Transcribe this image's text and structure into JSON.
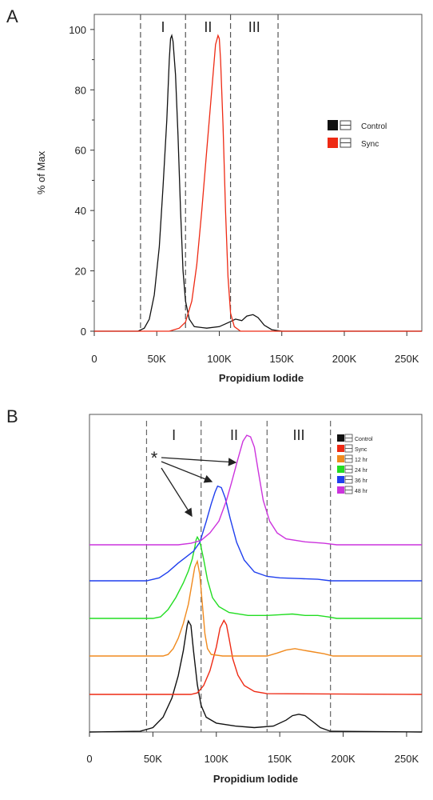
{
  "chart_data": [
    {
      "type": "line",
      "panel_label": "A",
      "xlabel": "Propidium Iodide",
      "ylabel": "% of Max",
      "xlim": [
        0,
        262000
      ],
      "ylim": [
        0,
        105
      ],
      "x_ticks": [
        0,
        50000,
        100000,
        150000,
        200000,
        250000
      ],
      "x_tick_labels": [
        "0",
        "50K",
        "100K",
        "150K",
        "200K",
        "250K"
      ],
      "y_ticks": [
        0,
        20,
        40,
        60,
        80,
        100
      ],
      "y_tick_labels": [
        "0",
        "20",
        "40",
        "60",
        "80",
        "100"
      ],
      "gates": [
        37000,
        73000,
        109000,
        147000
      ],
      "regions": [
        "I",
        "II",
        "III"
      ],
      "legend_position": "right",
      "series": [
        {
          "name": "Control",
          "color": "#111111",
          "points": [
            [
              0,
              0
            ],
            [
              35000,
              0
            ],
            [
              40000,
              1
            ],
            [
              44000,
              4
            ],
            [
              48000,
              12
            ],
            [
              52000,
              28
            ],
            [
              55000,
              48
            ],
            [
              58000,
              70
            ],
            [
              60000,
              90
            ],
            [
              61000,
              97
            ],
            [
              62000,
              98
            ],
            [
              63000,
              96
            ],
            [
              65000,
              85
            ],
            [
              67000,
              65
            ],
            [
              69000,
              40
            ],
            [
              71000,
              20
            ],
            [
              73000,
              10
            ],
            [
              76000,
              4
            ],
            [
              80000,
              1.5
            ],
            [
              90000,
              1
            ],
            [
              100000,
              1.5
            ],
            [
              108000,
              3
            ],
            [
              113000,
              4
            ],
            [
              118000,
              3.5
            ],
            [
              122000,
              5
            ],
            [
              127000,
              5.5
            ],
            [
              131000,
              4.5
            ],
            [
              136000,
              2
            ],
            [
              142000,
              0.5
            ],
            [
              150000,
              0
            ],
            [
              262000,
              0
            ]
          ]
        },
        {
          "name": "Sync",
          "color": "#ee2a14",
          "points": [
            [
              0,
              0
            ],
            [
              60000,
              0
            ],
            [
              68000,
              1
            ],
            [
              73000,
              3
            ],
            [
              78000,
              10
            ],
            [
              82000,
              22
            ],
            [
              86000,
              40
            ],
            [
              90000,
              60
            ],
            [
              94000,
              80
            ],
            [
              97000,
              95
            ],
            [
              99000,
              98
            ],
            [
              100000,
              97
            ],
            [
              101000,
              90
            ],
            [
              103000,
              68
            ],
            [
              105000,
              40
            ],
            [
              107000,
              18
            ],
            [
              109000,
              6
            ],
            [
              112000,
              1.5
            ],
            [
              117000,
              0
            ],
            [
              262000,
              0
            ]
          ]
        }
      ]
    },
    {
      "type": "line",
      "panel_label": "B",
      "xlabel": "Propidium Iodide",
      "xlim": [
        0,
        262000
      ],
      "x_ticks": [
        0,
        50000,
        100000,
        150000,
        200000,
        250000
      ],
      "x_tick_labels": [
        "0",
        "50K",
        "100K",
        "150K",
        "200K",
        "250K"
      ],
      "gates": [
        45000,
        88000,
        140000,
        190000
      ],
      "regions": [
        "I",
        "II",
        "III"
      ],
      "annotation": "*",
      "legend_position": "top-right",
      "series": [
        {
          "name": "Control",
          "color": "#111111",
          "points": [
            [
              0,
              0
            ],
            [
              40000,
              0.5
            ],
            [
              50000,
              3
            ],
            [
              58000,
              10
            ],
            [
              65000,
              23
            ],
            [
              70000,
              38
            ],
            [
              74000,
              55
            ],
            [
              77000,
              72
            ],
            [
              78000,
              75
            ],
            [
              80000,
              72
            ],
            [
              82000,
              55
            ],
            [
              85000,
              32
            ],
            [
              88000,
              18
            ],
            [
              92000,
              10
            ],
            [
              100000,
              6
            ],
            [
              115000,
              4
            ],
            [
              130000,
              3
            ],
            [
              145000,
              4
            ],
            [
              155000,
              8
            ],
            [
              160000,
              11
            ],
            [
              165000,
              12
            ],
            [
              170000,
              11
            ],
            [
              176000,
              7
            ],
            [
              182000,
              3
            ],
            [
              190000,
              0.5
            ],
            [
              262000,
              0
            ]
          ]
        },
        {
          "name": "Sync",
          "color": "#ee2a14",
          "points": [
            [
              0,
              0
            ],
            [
              80000,
              0
            ],
            [
              85000,
              1
            ],
            [
              90000,
              6
            ],
            [
              95000,
              16
            ],
            [
              100000,
              32
            ],
            [
              103000,
              45
            ],
            [
              106000,
              50
            ],
            [
              108000,
              47
            ],
            [
              110000,
              38
            ],
            [
              113000,
              24
            ],
            [
              117000,
              13
            ],
            [
              122000,
              6
            ],
            [
              130000,
              2
            ],
            [
              140000,
              0.5
            ],
            [
              262000,
              0
            ]
          ]
        },
        {
          "name": "12 hr",
          "color": "#f08a1e",
          "points": [
            [
              0,
              0
            ],
            [
              58000,
              0
            ],
            [
              62000,
              1
            ],
            [
              66000,
              5
            ],
            [
              70000,
              12
            ],
            [
              74000,
              22
            ],
            [
              78000,
              35
            ],
            [
              81000,
              50
            ],
            [
              83000,
              60
            ],
            [
              85000,
              64
            ],
            [
              87000,
              55
            ],
            [
              89000,
              35
            ],
            [
              91000,
              15
            ],
            [
              93000,
              5
            ],
            [
              96000,
              1
            ],
            [
              105000,
              0
            ],
            [
              140000,
              0
            ],
            [
              148000,
              2
            ],
            [
              155000,
              4
            ],
            [
              162000,
              5
            ],
            [
              168000,
              4
            ],
            [
              175000,
              3
            ],
            [
              185000,
              1.5
            ],
            [
              192000,
              0
            ],
            [
              262000,
              0
            ]
          ]
        },
        {
          "name": "24 hr",
          "color": "#22dd22",
          "points": [
            [
              0,
              0
            ],
            [
              50000,
              0
            ],
            [
              56000,
              1
            ],
            [
              62000,
              6
            ],
            [
              68000,
              14
            ],
            [
              74000,
              24
            ],
            [
              78000,
              32
            ],
            [
              81000,
              40
            ],
            [
              83000,
              48
            ],
            [
              84000,
              53
            ],
            [
              85000,
              55
            ],
            [
              87000,
              52
            ],
            [
              90000,
              40
            ],
            [
              93000,
              26
            ],
            [
              97000,
              14
            ],
            [
              102000,
              8
            ],
            [
              110000,
              4
            ],
            [
              125000,
              2
            ],
            [
              140000,
              2
            ],
            [
              150000,
              2.5
            ],
            [
              160000,
              3
            ],
            [
              170000,
              2
            ],
            [
              180000,
              2
            ],
            [
              188000,
              1
            ],
            [
              195000,
              0
            ],
            [
              262000,
              0
            ]
          ]
        },
        {
          "name": "36 hr",
          "color": "#1f3fee",
          "points": [
            [
              0,
              0
            ],
            [
              45000,
              0
            ],
            [
              55000,
              2
            ],
            [
              62000,
              6
            ],
            [
              70000,
              12
            ],
            [
              76000,
              16
            ],
            [
              82000,
              20
            ],
            [
              87000,
              26
            ],
            [
              92000,
              40
            ],
            [
              96000,
              52
            ],
            [
              99000,
              60
            ],
            [
              101000,
              64
            ],
            [
              104000,
              63
            ],
            [
              107000,
              56
            ],
            [
              111000,
              42
            ],
            [
              116000,
              26
            ],
            [
              122000,
              14
            ],
            [
              130000,
              6
            ],
            [
              140000,
              3
            ],
            [
              150000,
              2
            ],
            [
              165000,
              1.5
            ],
            [
              180000,
              1
            ],
            [
              190000,
              0
            ],
            [
              262000,
              0
            ]
          ]
        },
        {
          "name": "48 hr",
          "color": "#cc33dd",
          "points": [
            [
              0,
              0
            ],
            [
              70000,
              0
            ],
            [
              80000,
              1
            ],
            [
              88000,
              3
            ],
            [
              95000,
              8
            ],
            [
              102000,
              16
            ],
            [
              108000,
              30
            ],
            [
              112000,
              42
            ],
            [
              117000,
              58
            ],
            [
              121000,
              70
            ],
            [
              124000,
              74
            ],
            [
              127000,
              73
            ],
            [
              130000,
              66
            ],
            [
              133000,
              50
            ],
            [
              137000,
              30
            ],
            [
              142000,
              16
            ],
            [
              148000,
              8
            ],
            [
              155000,
              4
            ],
            [
              170000,
              2
            ],
            [
              185000,
              1
            ],
            [
              195000,
              0
            ],
            [
              262000,
              0
            ]
          ]
        }
      ]
    }
  ]
}
